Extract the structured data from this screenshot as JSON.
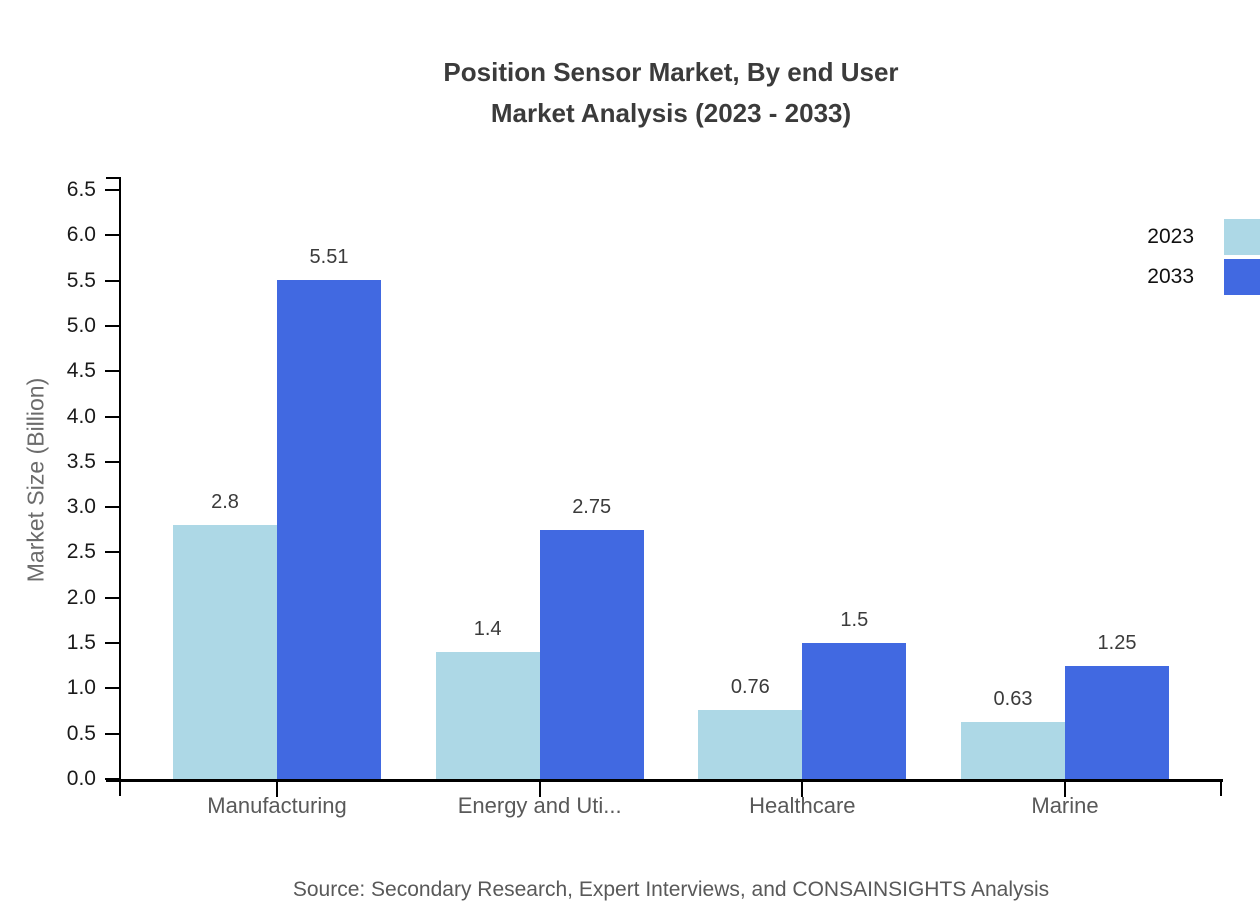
{
  "title": "Position Sensor Market, By end User\nMarket Analysis (2023 - 2033)",
  "source": "Source: Secondary Research, Expert Interviews, and CONSAINSIGHTS Analysis",
  "colors": {
    "series_2023": "#ADD8E6",
    "series_2033": "#4169E1",
    "axis": "#000000",
    "title_text": "#3b3b3b",
    "muted_text": "#595959"
  },
  "chart_data": {
    "type": "bar",
    "title": "Position Sensor Market, By end User Market Analysis (2023 - 2033)",
    "categories": [
      "Manufacturing",
      "Energy and Uti...",
      "Healthcare",
      "Marine"
    ],
    "series": [
      {
        "name": "2023",
        "color": "#ADD8E6",
        "values": [
          2.8,
          1.4,
          0.76,
          0.63
        ]
      },
      {
        "name": "2033",
        "color": "#4169E1",
        "values": [
          5.51,
          2.75,
          1.5,
          1.25
        ]
      }
    ],
    "xlabel": "",
    "ylabel": "Market Size (Billion)",
    "ylim": [
      0,
      6.5
    ],
    "ytick_step": 0.5,
    "grid": false,
    "bar_labels": true,
    "legend_position": "top-right"
  }
}
